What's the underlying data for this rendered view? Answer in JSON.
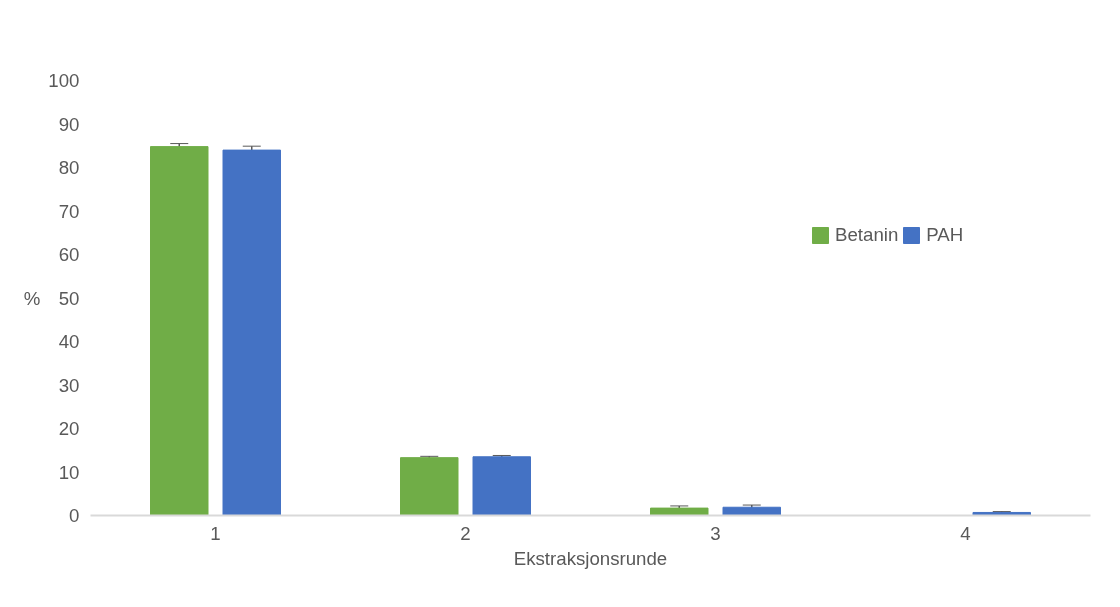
{
  "chart_data": {
    "type": "bar",
    "xlabel": "Ekstraksjonsrunde",
    "ylabel": "%",
    "categories": [
      "1",
      "2",
      "3",
      "4"
    ],
    "series": [
      {
        "name": "Betanin",
        "color": "#70ad47",
        "values": [
          84.8,
          13.3,
          1.7,
          null
        ],
        "errors": [
          0.7,
          0.3,
          0.5,
          null
        ]
      },
      {
        "name": "PAH",
        "color": "#4472c4",
        "values": [
          84.0,
          13.5,
          1.9,
          0.7
        ],
        "errors": [
          0.9,
          0.3,
          0.5,
          0.2
        ]
      }
    ],
    "ylim": [
      0,
      100
    ],
    "yticks": [
      0,
      10,
      20,
      30,
      40,
      50,
      60,
      70,
      80,
      90,
      100
    ],
    "grid": false,
    "legend": "right"
  }
}
